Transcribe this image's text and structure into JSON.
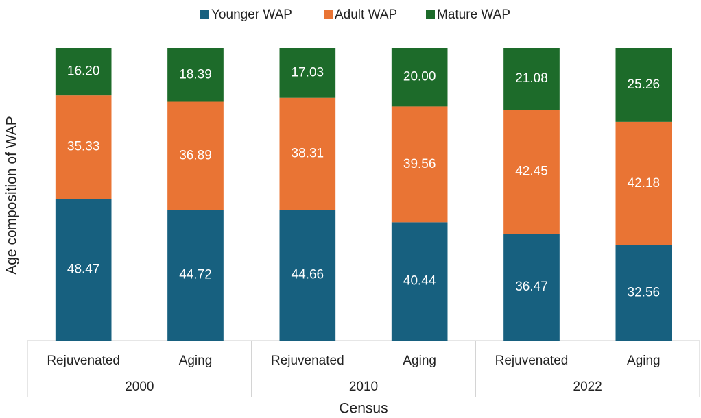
{
  "chart_data": {
    "type": "stacked_bar",
    "groups": [
      {
        "name": "2000",
        "categories": [
          "Rejuvenated",
          "Aging"
        ]
      },
      {
        "name": "2010",
        "categories": [
          "Rejuvenated",
          "Aging"
        ]
      },
      {
        "name": "2022",
        "categories": [
          "Rejuvenated",
          "Aging"
        ]
      }
    ],
    "series": [
      {
        "name": "Younger WAP",
        "color": "#17607f",
        "values": [
          48.47,
          44.72,
          44.66,
          40.44,
          36.47,
          32.56
        ],
        "value_labels": [
          "48.47",
          "44.72",
          "44.66",
          "40.44",
          "36.47",
          "32.56"
        ]
      },
      {
        "name": "Adult WAP",
        "color": "#e97434",
        "values": [
          35.33,
          36.89,
          38.31,
          39.56,
          42.45,
          42.18
        ],
        "value_labels": [
          "35.33",
          "36.89",
          "38.31",
          "39.56",
          "42.45",
          "42.18"
        ]
      },
      {
        "name": "Mature WAP",
        "color": "#1d6b2a",
        "values": [
          16.2,
          18.39,
          17.03,
          20,
          21.08,
          25.26
        ],
        "value_labels": [
          "16.20",
          "18.39",
          "17.03",
          "20.00",
          "21.08",
          "25.26"
        ]
      }
    ],
    "ylim": [
      0,
      100
    ],
    "x_label": "Census",
    "y_label": "Age composition of WAP",
    "legend": "top"
  }
}
